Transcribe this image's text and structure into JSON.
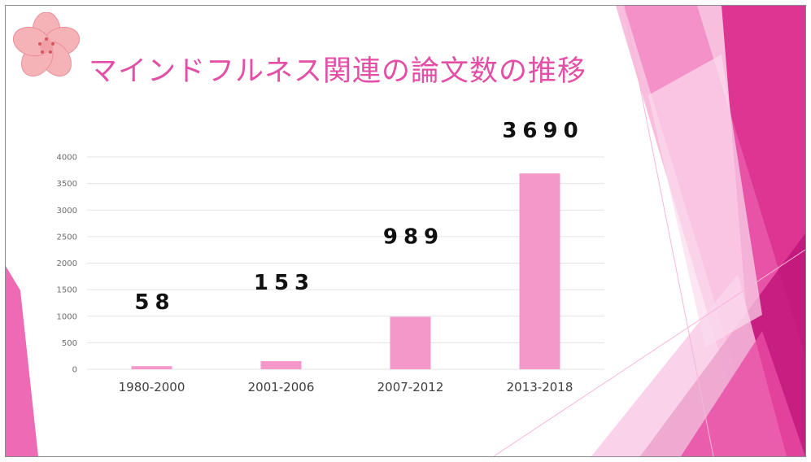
{
  "slide": {
    "title": "マインドフルネス関連の論文数の推移",
    "accent_color": "#e34fa6",
    "bar_color": "#f497c9",
    "decoration_icon": "cherry-blossom-icon"
  },
  "chart_data": {
    "type": "bar",
    "categories": [
      "1980-2000",
      "2001-2006",
      "2007-2012",
      "2013-2018"
    ],
    "values": [
      58,
      153,
      989,
      3690
    ],
    "data_labels": [
      "58",
      "153",
      "989",
      "3690"
    ],
    "ylim": [
      0,
      4000
    ],
    "yticks": [
      0,
      500,
      1000,
      1500,
      2000,
      2500,
      3000,
      3500,
      4000
    ],
    "grid": true,
    "legend": "none"
  }
}
